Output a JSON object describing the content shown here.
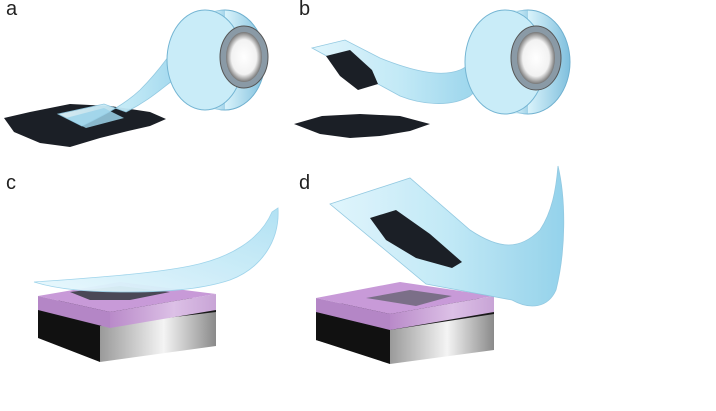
{
  "panels": [
    {
      "label": "a"
    },
    {
      "label": "b"
    },
    {
      "label": "c"
    },
    {
      "label": "d"
    }
  ],
  "colors": {
    "tape": "#bfe8f6",
    "tape_edge": "#6aaed0",
    "flake": "#1a1e24",
    "oxide": "#c89ad8",
    "substrate_dark": "#151515",
    "substrate_light": "#e8e8e8"
  }
}
